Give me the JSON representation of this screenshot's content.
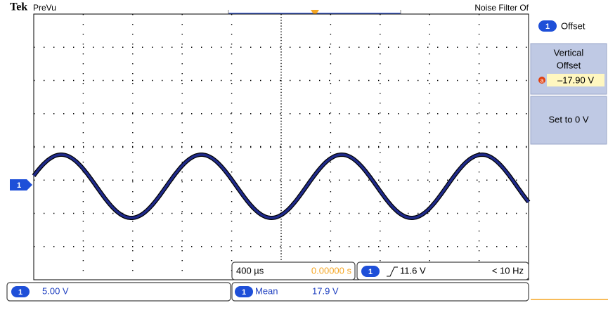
{
  "header": {
    "brand": "Tek",
    "mode": "PreVu",
    "noise_filter": "Noise Filter Of"
  },
  "side_menu": {
    "channel": "1",
    "title": "Offset",
    "items": [
      {
        "label_lines": [
          "Vertical",
          "Offset"
        ],
        "marker": "a",
        "value": "–17.90 V"
      },
      {
        "label": "Set to 0 V"
      }
    ]
  },
  "channel_marker": "1",
  "timebase": {
    "scale": "400 µs",
    "position": "0.00000 s"
  },
  "trigger": {
    "channel": "1",
    "level": "11.6 V",
    "frequency": "< 10 Hz"
  },
  "vertical": {
    "channel": "1",
    "scale": "5.00 V"
  },
  "measurement": {
    "channel": "1",
    "name": "Mean",
    "value": "17.9 V"
  }
}
